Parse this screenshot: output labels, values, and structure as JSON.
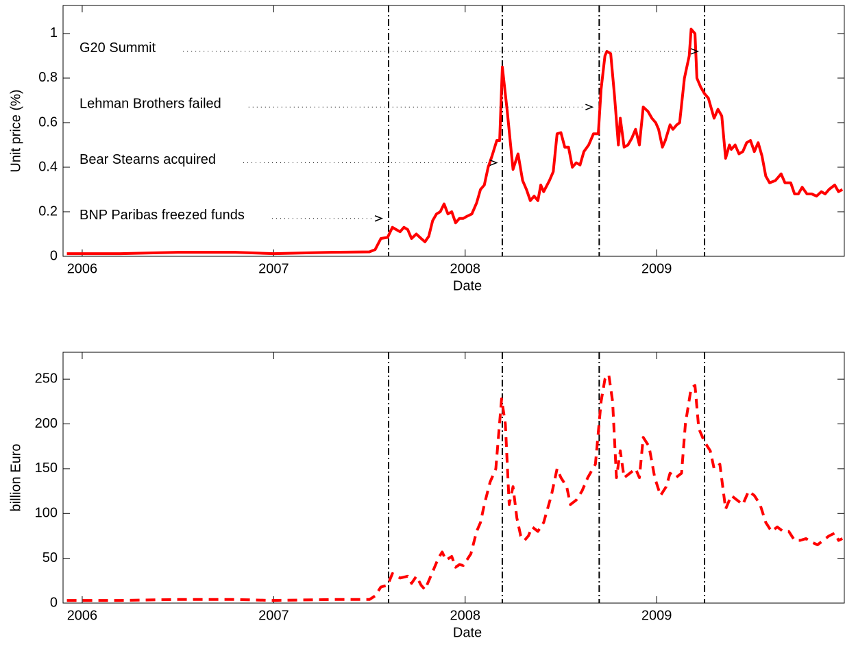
{
  "chart_data": [
    {
      "type": "line",
      "xlabel": "Date",
      "ylabel": "Unit price (%)",
      "x": [
        2005.92,
        2006.2,
        2006.5,
        2006.8,
        2007.0,
        2007.3,
        2007.5,
        2007.53,
        2007.56,
        2007.595,
        2007.62,
        2007.64,
        2007.66,
        2007.68,
        2007.7,
        2007.72,
        2007.745,
        2007.77,
        2007.79,
        2007.81,
        2007.83,
        2007.85,
        2007.87,
        2007.89,
        2007.91,
        2007.93,
        2007.95,
        2007.97,
        2007.99,
        2008.01,
        2008.035,
        2008.06,
        2008.08,
        2008.1,
        2008.12,
        2008.14,
        2008.165,
        2008.18,
        2008.194,
        2008.22,
        2008.25,
        2008.276,
        2008.3,
        2008.32,
        2008.34,
        2008.36,
        2008.38,
        2008.395,
        2008.41,
        2008.44,
        2008.46,
        2008.48,
        2008.5,
        2008.52,
        2008.54,
        2008.56,
        2008.58,
        2008.6,
        2008.62,
        2008.645,
        2008.67,
        2008.695,
        2008.71,
        2008.73,
        2008.74,
        2008.76,
        2008.78,
        2008.8,
        2008.81,
        2008.83,
        2008.85,
        2008.87,
        2008.89,
        2008.91,
        2008.93,
        2008.955,
        2008.975,
        2008.995,
        2009.01,
        2009.03,
        2009.045,
        2009.07,
        2009.085,
        2009.105,
        2009.12,
        2009.145,
        2009.17,
        2009.18,
        2009.2,
        2009.21,
        2009.23,
        2009.25,
        2009.27,
        2009.3,
        2009.32,
        2009.34,
        2009.36,
        2009.38,
        2009.39,
        2009.41,
        2009.43,
        2009.45,
        2009.47,
        2009.49,
        2009.51,
        2009.53,
        2009.55,
        2009.57,
        2009.59,
        2009.62,
        2009.65,
        2009.67,
        2009.7,
        2009.72,
        2009.74,
        2009.76,
        2009.785,
        2009.81,
        2009.835,
        2009.86,
        2009.88,
        2009.9,
        2009.93,
        2009.95,
        2009.97
      ],
      "series": [
        {
          "color": "#ff0000",
          "values": [
            0.012,
            0.012,
            0.018,
            0.018,
            0.012,
            0.018,
            0.02,
            0.03,
            0.08,
            0.085,
            0.13,
            0.12,
            0.11,
            0.13,
            0.12,
            0.08,
            0.1,
            0.08,
            0.065,
            0.09,
            0.16,
            0.19,
            0.2,
            0.235,
            0.19,
            0.2,
            0.15,
            0.17,
            0.17,
            0.18,
            0.19,
            0.24,
            0.3,
            0.32,
            0.4,
            0.45,
            0.52,
            0.52,
            0.85,
            0.65,
            0.39,
            0.46,
            0.34,
            0.3,
            0.25,
            0.27,
            0.25,
            0.32,
            0.29,
            0.34,
            0.38,
            0.55,
            0.555,
            0.49,
            0.49,
            0.4,
            0.42,
            0.41,
            0.47,
            0.5,
            0.55,
            0.55,
            0.75,
            0.9,
            0.92,
            0.91,
            0.72,
            0.5,
            0.62,
            0.49,
            0.5,
            0.53,
            0.57,
            0.5,
            0.67,
            0.65,
            0.62,
            0.6,
            0.57,
            0.49,
            0.52,
            0.59,
            0.57,
            0.59,
            0.6,
            0.8,
            0.9,
            1.02,
            1.0,
            0.8,
            0.76,
            0.73,
            0.71,
            0.62,
            0.66,
            0.63,
            0.44,
            0.5,
            0.48,
            0.5,
            0.46,
            0.47,
            0.51,
            0.52,
            0.47,
            0.51,
            0.45,
            0.36,
            0.33,
            0.34,
            0.37,
            0.33,
            0.33,
            0.28,
            0.28,
            0.31,
            0.28,
            0.28,
            0.27,
            0.29,
            0.28,
            0.3,
            0.32,
            0.29,
            0.3
          ]
        }
      ],
      "xlim": [
        2005.9,
        2009.98
      ],
      "ylim": [
        0,
        1.126
      ],
      "xticks": [
        2006,
        2007,
        2008,
        2009
      ],
      "yticks": [
        0,
        0.2,
        0.4,
        0.6,
        0.8,
        1
      ],
      "vlines": [
        2007.6,
        2008.194,
        2008.7,
        2009.25
      ],
      "annotations": [
        {
          "text": "BNP Paribas freezed funds",
          "x": 2007.55,
          "y": 0.17
        },
        {
          "text": "Bear Stearns acquired",
          "x": 2008.15,
          "y": 0.42
        },
        {
          "text": "Lehman Brothers failed",
          "x": 2008.65,
          "y": 0.67
        },
        {
          "text": "G20 Summit",
          "x": 2009.2,
          "y": 0.92
        }
      ]
    },
    {
      "type": "line",
      "xlabel": "Date",
      "ylabel": "billion Euro",
      "x": [
        2005.92,
        2006.2,
        2006.5,
        2006.8,
        2007.0,
        2007.3,
        2007.5,
        2007.53,
        2007.56,
        2007.595,
        2007.62,
        2007.66,
        2007.7,
        2007.72,
        2007.745,
        2007.77,
        2007.79,
        2007.83,
        2007.86,
        2007.88,
        2007.9,
        2007.93,
        2007.95,
        2007.97,
        2007.99,
        2008.03,
        2008.06,
        2008.08,
        2008.1,
        2008.13,
        2008.16,
        2008.19,
        2008.21,
        2008.23,
        2008.25,
        2008.27,
        2008.29,
        2008.31,
        2008.33,
        2008.35,
        2008.38,
        2008.41,
        2008.45,
        2008.48,
        2008.5,
        2008.53,
        2008.55,
        2008.58,
        2008.61,
        2008.64,
        2008.68,
        2008.71,
        2008.73,
        2008.75,
        2008.77,
        2008.79,
        2008.81,
        2008.83,
        2008.86,
        2008.89,
        2008.91,
        2008.93,
        2008.96,
        2008.99,
        2009.02,
        2009.05,
        2009.07,
        2009.1,
        2009.13,
        2009.15,
        2009.18,
        2009.2,
        2009.22,
        2009.25,
        2009.28,
        2009.3,
        2009.33,
        2009.36,
        2009.39,
        2009.42,
        2009.45,
        2009.48,
        2009.51,
        2009.54,
        2009.57,
        2009.6,
        2009.63,
        2009.66,
        2009.69,
        2009.72,
        2009.75,
        2009.78,
        2009.81,
        2009.84,
        2009.87,
        2009.9,
        2009.93,
        2009.95,
        2009.97
      ],
      "series": [
        {
          "color": "#ff0000",
          "values": [
            3,
            3,
            4,
            4,
            3,
            4,
            4,
            8,
            18,
            20,
            33,
            28,
            30,
            22,
            30,
            20,
            15,
            35,
            50,
            57,
            48,
            52,
            40,
            43,
            42,
            55,
            80,
            90,
            110,
            135,
            150,
            228,
            200,
            110,
            130,
            95,
            75,
            70,
            75,
            85,
            80,
            90,
            120,
            150,
            140,
            130,
            110,
            115,
            125,
            140,
            155,
            225,
            250,
            255,
            225,
            140,
            170,
            140,
            145,
            150,
            140,
            185,
            175,
            140,
            120,
            130,
            145,
            140,
            145,
            200,
            240,
            243,
            195,
            180,
            170,
            150,
            155,
            105,
            120,
            115,
            110,
            125,
            120,
            110,
            90,
            80,
            85,
            80,
            80,
            70,
            70,
            72,
            68,
            65,
            70,
            75,
            78,
            70,
            72
          ]
        }
      ],
      "xlim": [
        2005.9,
        2009.98
      ],
      "ylim": [
        0,
        280
      ],
      "xticks": [
        2006,
        2007,
        2008,
        2009
      ],
      "yticks": [
        0,
        50,
        100,
        150,
        200,
        250
      ],
      "vlines": [
        2007.6,
        2008.194,
        2008.7,
        2009.25
      ]
    }
  ]
}
